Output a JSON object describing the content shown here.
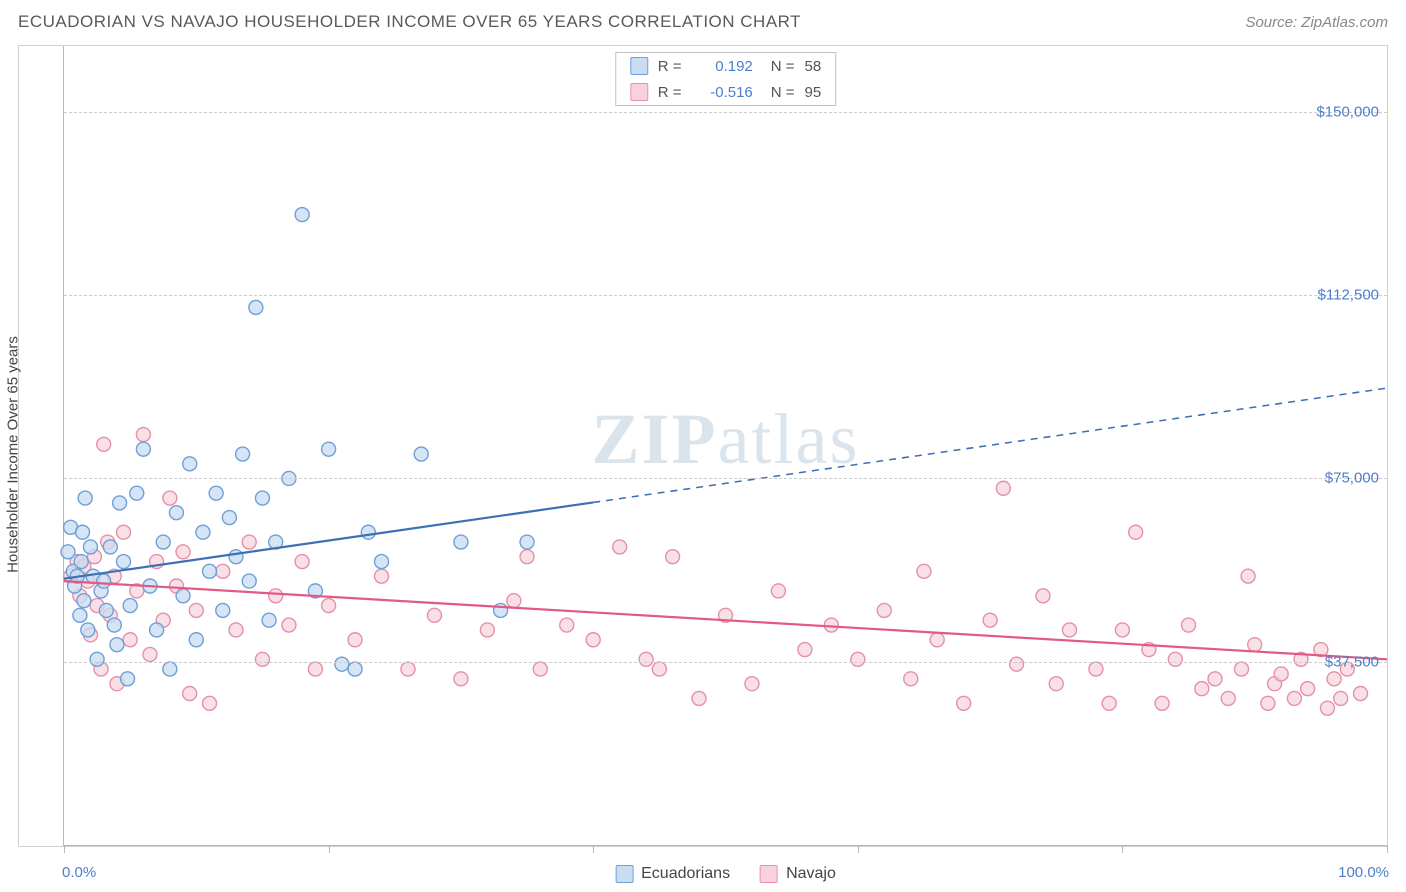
{
  "header": {
    "title": "ECUADORIAN VS NAVAJO HOUSEHOLDER INCOME OVER 65 YEARS CORRELATION CHART",
    "source": "Source: ZipAtlas.com"
  },
  "watermark": {
    "part1": "ZIP",
    "part2": "atlas"
  },
  "chart": {
    "type": "scatter",
    "ylabel": "Householder Income Over 65 years",
    "background_color": "#ffffff",
    "grid_color": "#cccccc",
    "axis_color": "#b8b8b8",
    "ylim": [
      0,
      163500
    ],
    "yticks": [
      {
        "value": 37500,
        "label": "$37,500"
      },
      {
        "value": 75000,
        "label": "$75,000"
      },
      {
        "value": 112500,
        "label": "$112,500"
      },
      {
        "value": 150000,
        "label": "$150,000"
      }
    ],
    "xlim": [
      0,
      100
    ],
    "xticks": [
      0,
      20,
      40,
      60,
      80,
      100
    ],
    "xaxis_labels": {
      "left": "0.0%",
      "right": "100.0%"
    },
    "xaxis_label_color": "#4a7ecc",
    "ytick_label_color": "#4a7ecc",
    "marker_radius": 7,
    "marker_stroke_width": 1.4,
    "series": [
      {
        "name": "Ecuadorians",
        "fill": "#c8dcf2",
        "stroke": "#6f9fd6",
        "fill_opacity": 0.75,
        "R": "0.192",
        "N": "58",
        "trend": {
          "color": "#3d6fb5",
          "width": 2.2,
          "solid_x_end": 40,
          "y_start": 54500,
          "y_end_100": 93500
        },
        "points": [
          [
            0.3,
            60000
          ],
          [
            0.5,
            65000
          ],
          [
            0.7,
            56000
          ],
          [
            0.8,
            53000
          ],
          [
            1.0,
            55000
          ],
          [
            1.2,
            47000
          ],
          [
            1.3,
            58000
          ],
          [
            1.4,
            64000
          ],
          [
            1.5,
            50000
          ],
          [
            1.6,
            71000
          ],
          [
            1.8,
            44000
          ],
          [
            2.0,
            61000
          ],
          [
            2.2,
            55000
          ],
          [
            2.5,
            38000
          ],
          [
            2.8,
            52000
          ],
          [
            3.0,
            54000
          ],
          [
            3.2,
            48000
          ],
          [
            3.5,
            61000
          ],
          [
            3.8,
            45000
          ],
          [
            4.0,
            41000
          ],
          [
            4.2,
            70000
          ],
          [
            4.5,
            58000
          ],
          [
            4.8,
            34000
          ],
          [
            5.0,
            49000
          ],
          [
            5.5,
            72000
          ],
          [
            6.0,
            81000
          ],
          [
            6.5,
            53000
          ],
          [
            7.0,
            44000
          ],
          [
            7.5,
            62000
          ],
          [
            8.0,
            36000
          ],
          [
            8.5,
            68000
          ],
          [
            9.0,
            51000
          ],
          [
            9.5,
            78000
          ],
          [
            10.0,
            42000
          ],
          [
            10.5,
            64000
          ],
          [
            11.0,
            56000
          ],
          [
            11.5,
            72000
          ],
          [
            12.0,
            48000
          ],
          [
            12.5,
            67000
          ],
          [
            13.0,
            59000
          ],
          [
            13.5,
            80000
          ],
          [
            14.0,
            54000
          ],
          [
            14.5,
            110000
          ],
          [
            15.0,
            71000
          ],
          [
            15.5,
            46000
          ],
          [
            16.0,
            62000
          ],
          [
            17.0,
            75000
          ],
          [
            18.0,
            129000
          ],
          [
            19.0,
            52000
          ],
          [
            20.0,
            81000
          ],
          [
            21.0,
            37000
          ],
          [
            22.0,
            36000
          ],
          [
            23.0,
            64000
          ],
          [
            24.0,
            58000
          ],
          [
            27.0,
            80000
          ],
          [
            30.0,
            62000
          ],
          [
            33.0,
            48000
          ],
          [
            35.0,
            62000
          ]
        ]
      },
      {
        "name": "Navajo",
        "fill": "#f6d3dc",
        "stroke": "#e590a8",
        "fill_opacity": 0.7,
        "R": "-0.516",
        "N": "95",
        "trend": {
          "color": "#e05a84",
          "width": 2.2,
          "solid_x_end": 100,
          "y_start": 54000,
          "y_end_100": 38000
        },
        "points": [
          [
            0.5,
            55000
          ],
          [
            1.0,
            58000
          ],
          [
            1.2,
            51000
          ],
          [
            1.5,
            57000
          ],
          [
            1.8,
            54000
          ],
          [
            2.0,
            43000
          ],
          [
            2.3,
            59000
          ],
          [
            2.5,
            49000
          ],
          [
            2.8,
            36000
          ],
          [
            3.0,
            82000
          ],
          [
            3.3,
            62000
          ],
          [
            3.5,
            47000
          ],
          [
            3.8,
            55000
          ],
          [
            4.0,
            33000
          ],
          [
            4.5,
            64000
          ],
          [
            5.0,
            42000
          ],
          [
            5.5,
            52000
          ],
          [
            6.0,
            84000
          ],
          [
            6.5,
            39000
          ],
          [
            7.0,
            58000
          ],
          [
            7.5,
            46000
          ],
          [
            8.0,
            71000
          ],
          [
            8.5,
            53000
          ],
          [
            9.0,
            60000
          ],
          [
            9.5,
            31000
          ],
          [
            10.0,
            48000
          ],
          [
            11.0,
            29000
          ],
          [
            12.0,
            56000
          ],
          [
            13.0,
            44000
          ],
          [
            14.0,
            62000
          ],
          [
            15.0,
            38000
          ],
          [
            16.0,
            51000
          ],
          [
            17.0,
            45000
          ],
          [
            18.0,
            58000
          ],
          [
            19.0,
            36000
          ],
          [
            20.0,
            49000
          ],
          [
            22.0,
            42000
          ],
          [
            24.0,
            55000
          ],
          [
            26.0,
            36000
          ],
          [
            28.0,
            47000
          ],
          [
            30.0,
            34000
          ],
          [
            32.0,
            44000
          ],
          [
            34.0,
            50000
          ],
          [
            35.0,
            59000
          ],
          [
            36.0,
            36000
          ],
          [
            38.0,
            45000
          ],
          [
            40.0,
            42000
          ],
          [
            42.0,
            61000
          ],
          [
            44.0,
            38000
          ],
          [
            45.0,
            36000
          ],
          [
            46.0,
            59000
          ],
          [
            48.0,
            30000
          ],
          [
            50.0,
            47000
          ],
          [
            52.0,
            33000
          ],
          [
            54.0,
            52000
          ],
          [
            56.0,
            40000
          ],
          [
            58.0,
            45000
          ],
          [
            60.0,
            38000
          ],
          [
            62.0,
            48000
          ],
          [
            64.0,
            34000
          ],
          [
            65.0,
            56000
          ],
          [
            66.0,
            42000
          ],
          [
            68.0,
            29000
          ],
          [
            70.0,
            46000
          ],
          [
            71.0,
            73000
          ],
          [
            72.0,
            37000
          ],
          [
            74.0,
            51000
          ],
          [
            75.0,
            33000
          ],
          [
            76.0,
            44000
          ],
          [
            78.0,
            36000
          ],
          [
            79.0,
            29000
          ],
          [
            80.0,
            44000
          ],
          [
            81.0,
            64000
          ],
          [
            82.0,
            40000
          ],
          [
            83.0,
            29000
          ],
          [
            84.0,
            38000
          ],
          [
            85.0,
            45000
          ],
          [
            86.0,
            32000
          ],
          [
            87.0,
            34000
          ],
          [
            88.0,
            30000
          ],
          [
            89.0,
            36000
          ],
          [
            89.5,
            55000
          ],
          [
            90.0,
            41000
          ],
          [
            91.0,
            29000
          ],
          [
            91.5,
            33000
          ],
          [
            92.0,
            35000
          ],
          [
            93.0,
            30000
          ],
          [
            93.5,
            38000
          ],
          [
            94.0,
            32000
          ],
          [
            95.0,
            40000
          ],
          [
            95.5,
            28000
          ],
          [
            96.0,
            34000
          ],
          [
            96.5,
            30000
          ],
          [
            97.0,
            36000
          ],
          [
            98.0,
            31000
          ]
        ]
      }
    ]
  },
  "legend_top_labels": {
    "R_prefix": "R =",
    "N_prefix": "N ="
  },
  "legend_bottom": [
    {
      "label": "Ecuadorians",
      "fill": "#c8dcf2",
      "stroke": "#6f9fd6"
    },
    {
      "label": "Navajo",
      "fill": "#f6d3dc",
      "stroke": "#e590a8"
    }
  ]
}
